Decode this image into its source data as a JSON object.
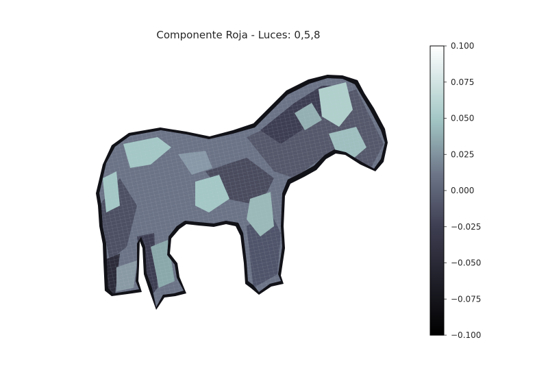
{
  "chart_data": {
    "type": "heatmap",
    "title": "Componente Roja - Luces: 0,5,8",
    "subject": "3D surface plot of a horse shape shaded by value",
    "colormap": "bone",
    "colors": {
      "min": "#000000",
      "low": "#3e3e52",
      "mid": "#6b7386",
      "high": "#a4c8c6",
      "max": "#ffffff",
      "edge": "#2a2a33"
    },
    "colorbar": {
      "vmin": -0.1,
      "vmax": 0.1,
      "ticks": [
        0.1,
        0.075,
        0.05,
        0.025,
        0.0,
        -0.025,
        -0.05,
        -0.075,
        -0.1
      ],
      "tick_labels": [
        "0.100",
        "0.075",
        "0.050",
        "0.025",
        "0.000",
        "−0.025",
        "−0.050",
        "−0.075",
        "−0.100"
      ],
      "position": "right"
    },
    "axes_visible": false
  }
}
